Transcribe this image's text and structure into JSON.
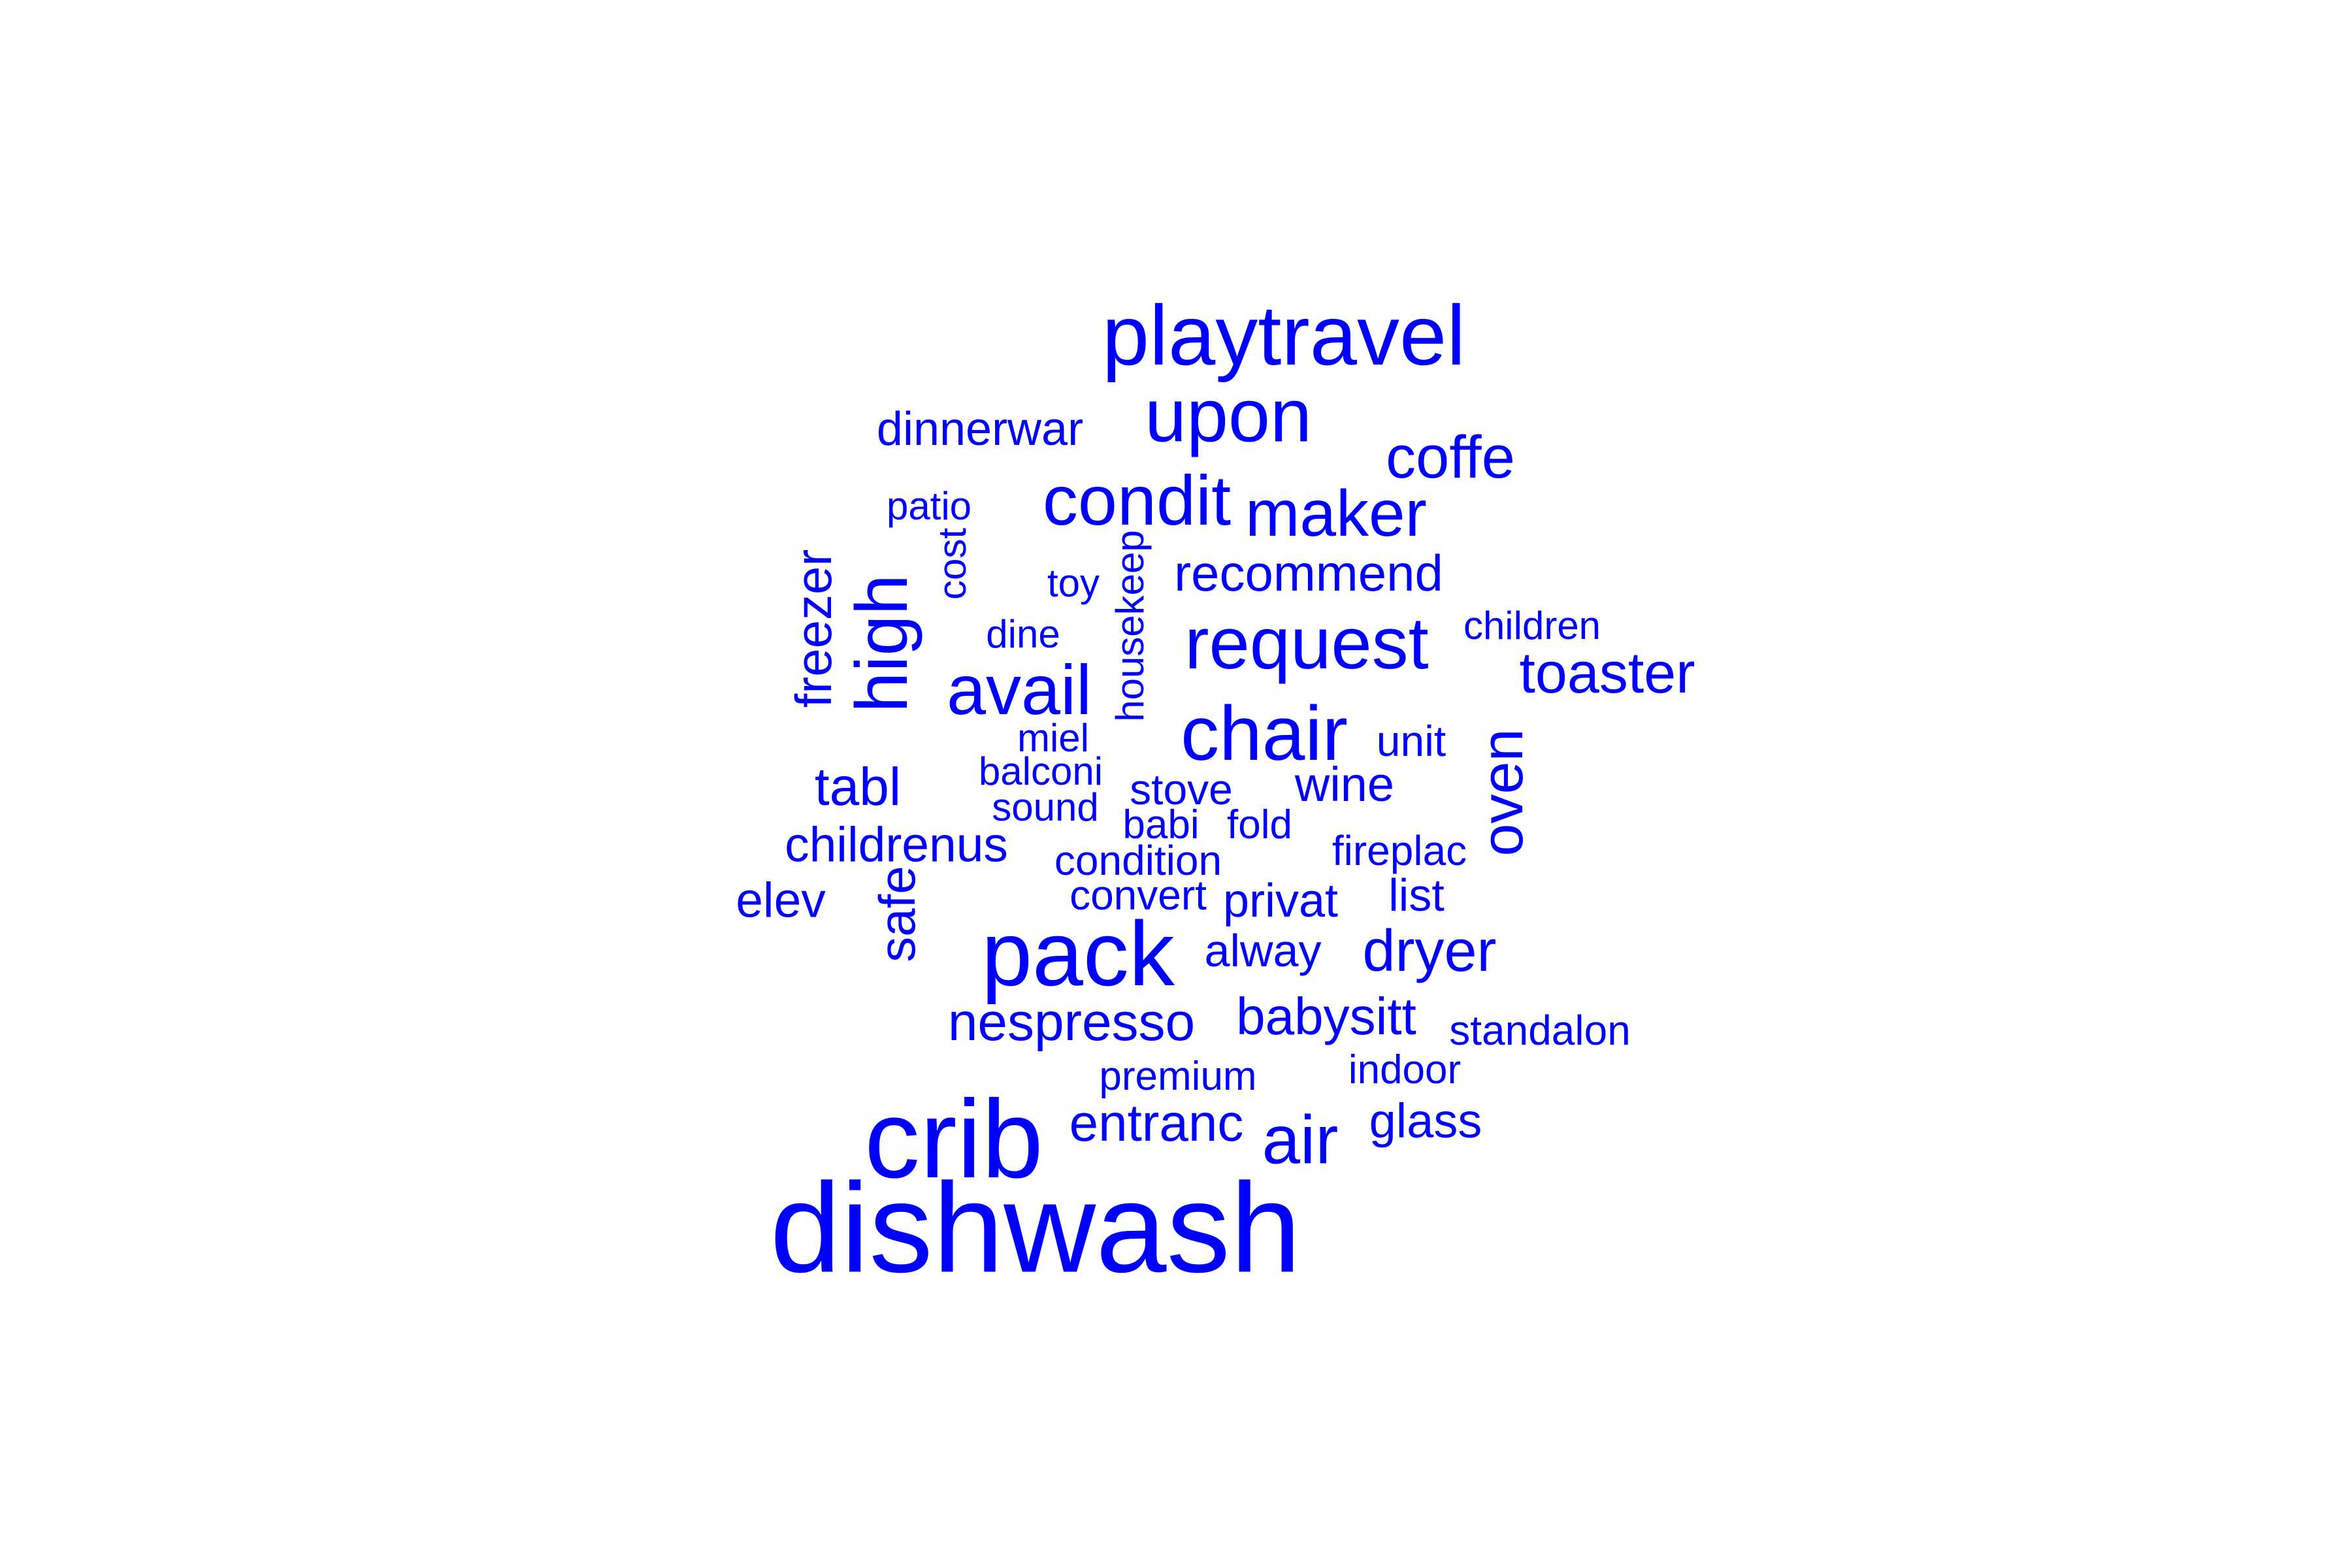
{
  "word_color": "#0000ff",
  "background_color": "#ffffff",
  "words": [
    {
      "text": "dishwash"
    },
    {
      "text": "crib"
    },
    {
      "text": "pack"
    },
    {
      "text": "playtravel"
    },
    {
      "text": "upon"
    },
    {
      "text": "chair"
    },
    {
      "text": "request"
    },
    {
      "text": "avail"
    },
    {
      "text": "high"
    },
    {
      "text": "condit"
    },
    {
      "text": "maker"
    },
    {
      "text": "air"
    },
    {
      "text": "coffe"
    },
    {
      "text": "toaster"
    },
    {
      "text": "dryer"
    },
    {
      "text": "oven"
    },
    {
      "text": "nespresso"
    },
    {
      "text": "tabl"
    },
    {
      "text": "babysitt"
    },
    {
      "text": "entranc"
    },
    {
      "text": "childrenus"
    },
    {
      "text": "recommend"
    },
    {
      "text": "dinnerwar"
    },
    {
      "text": "freezer"
    },
    {
      "text": "safe"
    },
    {
      "text": "elev"
    },
    {
      "text": "wine"
    },
    {
      "text": "glass"
    },
    {
      "text": "privat"
    },
    {
      "text": "alway"
    },
    {
      "text": "stove"
    },
    {
      "text": "list"
    },
    {
      "text": "standalon"
    },
    {
      "text": "unit"
    },
    {
      "text": "fireplac"
    },
    {
      "text": "babi"
    },
    {
      "text": "fold"
    },
    {
      "text": "condition"
    },
    {
      "text": "convert"
    },
    {
      "text": "premium"
    },
    {
      "text": "indoor"
    },
    {
      "text": "children"
    },
    {
      "text": "toy"
    },
    {
      "text": "dine"
    },
    {
      "text": "miel"
    },
    {
      "text": "balconi"
    },
    {
      "text": "sound"
    },
    {
      "text": "patio"
    },
    {
      "text": "cost"
    },
    {
      "text": "housekeep"
    }
  ]
}
